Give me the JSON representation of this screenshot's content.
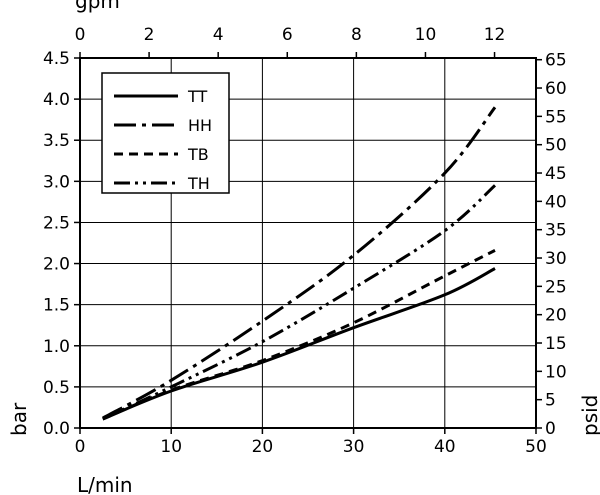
{
  "chart_data": {
    "type": "line",
    "xlabel": "L/min",
    "ylabel": "bar",
    "x2label": "gpm",
    "y2label": "psid",
    "xlim": [
      0,
      50
    ],
    "ylim": [
      0,
      4.5
    ],
    "x2lim": [
      0,
      13.2
    ],
    "y2lim": [
      0,
      65.3
    ],
    "grid": true,
    "legend_position": "top-left",
    "x_ticks": [
      0,
      10,
      20,
      30,
      40,
      50
    ],
    "y_ticks": [
      0.0,
      0.5,
      1.0,
      1.5,
      2.0,
      2.5,
      3.0,
      3.5,
      4.0,
      4.5
    ],
    "x2_ticks": [
      0,
      2,
      4,
      6,
      8,
      10,
      12
    ],
    "y2_ticks": [
      0,
      5,
      10,
      15,
      20,
      25,
      30,
      35,
      40,
      45,
      50,
      55,
      60,
      65
    ],
    "x_tick_labels": [
      "0",
      "10",
      "20",
      "30",
      "40",
      "50"
    ],
    "y_tick_labels": [
      "0.0",
      "0.5",
      "1.0",
      "1.5",
      "2.0",
      "2.5",
      "3.0",
      "3.5",
      "4.0",
      "4.5"
    ],
    "x2_tick_labels": [
      "0",
      "2",
      "4",
      "6",
      "8",
      "10",
      "12"
    ],
    "y2_tick_labels": [
      "0",
      "5",
      "10",
      "15",
      "20",
      "25",
      "30",
      "35",
      "40",
      "45",
      "50",
      "55",
      "60",
      "65"
    ],
    "series": [
      {
        "name": "TT",
        "dash": "solid",
        "x": [
          2.5,
          10,
          20,
          30,
          40,
          45.5
        ],
        "y": [
          0.11,
          0.45,
          0.8,
          1.22,
          1.62,
          1.94
        ]
      },
      {
        "name": "HH",
        "dash": "dash-dot",
        "x": [
          2.5,
          10,
          20,
          30,
          40,
          45.5
        ],
        "y": [
          0.12,
          0.58,
          1.3,
          2.1,
          3.1,
          3.9
        ]
      },
      {
        "name": "TB",
        "dash": "dashed",
        "x": [
          2.5,
          10,
          20,
          30,
          40,
          45.5
        ],
        "y": [
          0.11,
          0.46,
          0.82,
          1.28,
          1.85,
          2.16
        ]
      },
      {
        "name": "TH",
        "dash": "dash-dot-dot",
        "x": [
          2.5,
          10,
          20,
          30,
          40,
          45.5
        ],
        "y": [
          0.11,
          0.5,
          1.05,
          1.7,
          2.4,
          2.95
        ]
      }
    ]
  }
}
